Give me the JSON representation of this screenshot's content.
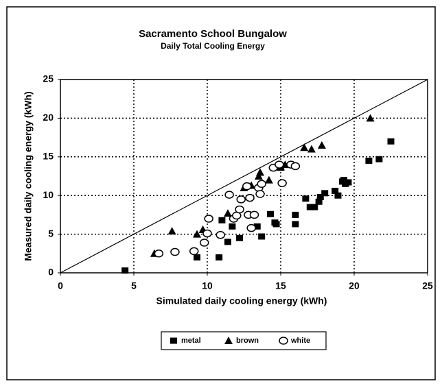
{
  "chart_data": {
    "type": "scatter",
    "title": "Sacramento School Bungalow",
    "subtitle": "Daily Total Cooling Energy",
    "x_label": "Simulated daily cooling energy (kWh)",
    "y_label": "Measured daily cooling energy (kWh)",
    "xlim": [
      0,
      25
    ],
    "ylim": [
      0,
      25
    ],
    "xticks": [
      0,
      5,
      10,
      15,
      20,
      25
    ],
    "yticks": [
      0,
      5,
      10,
      15,
      20,
      25
    ],
    "grid": true,
    "legend": "bottom",
    "series": [
      {
        "name": "metal",
        "color": "#000000",
        "marker": "square",
        "x": [
          4.4,
          9.3,
          10.8,
          11.0,
          11.4,
          11.7,
          12.2,
          13.4,
          13.7,
          14.3,
          14.6,
          14.7,
          16.0,
          16.0,
          16.7,
          17.0,
          17.3,
          17.6,
          17.7,
          18.0,
          18.7,
          18.9,
          19.2,
          19.4,
          19.6,
          19.3,
          21.0,
          21.7,
          22.5,
          15.0
        ],
        "values": [
          0.3,
          2.0,
          2.0,
          6.8,
          4.0,
          6.0,
          4.5,
          6.0,
          4.7,
          7.6,
          6.5,
          6.3,
          7.5,
          6.3,
          9.6,
          8.5,
          8.5,
          9.2,
          9.8,
          10.3,
          10.6,
          10.0,
          11.8,
          11.5,
          11.7,
          12.0,
          14.5,
          14.7,
          17.0,
          13.6
        ]
      },
      {
        "name": "brown",
        "color": "#000000",
        "marker": "triangle",
        "x": [
          6.4,
          7.6,
          9.3,
          9.7,
          11.4,
          12.5,
          13.0,
          13.5,
          13.6,
          14.2,
          15.0,
          15.3,
          16.6,
          17.1,
          17.8,
          21.1
        ],
        "values": [
          2.5,
          5.4,
          5.0,
          5.6,
          7.7,
          11.0,
          11.3,
          12.5,
          13.0,
          12.0,
          13.7,
          14.0,
          16.2,
          16.0,
          16.5,
          20.0
        ]
      },
      {
        "name": "white",
        "color": "#000000",
        "marker": "circle",
        "x": [
          6.7,
          7.8,
          9.1,
          9.8,
          10.0,
          10.1,
          10.9,
          11.5,
          11.8,
          12.0,
          12.2,
          12.3,
          12.7,
          12.9,
          12.8,
          13.0,
          13.2,
          13.5,
          13.6,
          13.7,
          14.5,
          14.9,
          15.1,
          15.7,
          16.0
        ],
        "values": [
          2.5,
          2.7,
          2.8,
          3.9,
          5.1,
          7.0,
          4.9,
          10.1,
          7.0,
          7.4,
          8.2,
          9.5,
          11.2,
          9.7,
          7.5,
          5.8,
          7.5,
          11.0,
          10.2,
          11.5,
          13.6,
          14.0,
          11.6,
          14.0,
          13.8
        ]
      }
    ]
  }
}
